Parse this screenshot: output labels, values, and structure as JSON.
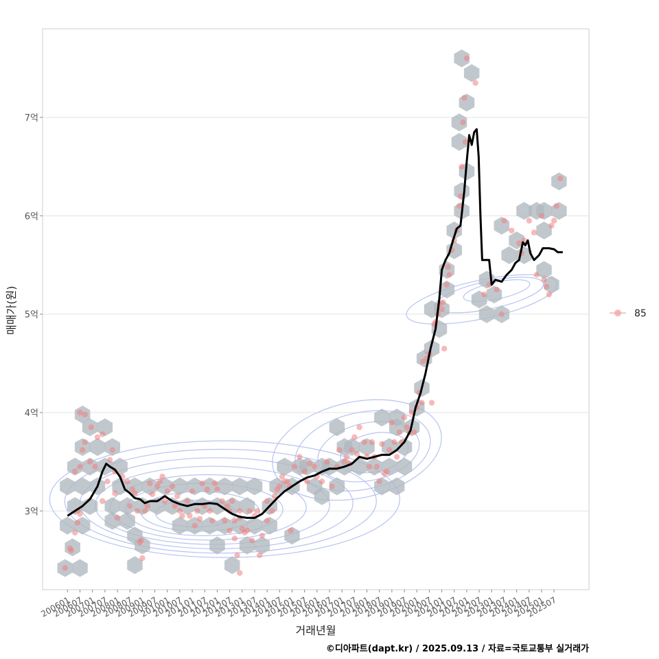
{
  "chart_data": {
    "type": "scatter",
    "xlabel": "거래년월",
    "ylabel": "매매가(원)",
    "x_ticks": [
      "200601",
      "200607",
      "200701",
      "200707",
      "200801",
      "200807",
      "200901",
      "200907",
      "201001",
      "201007",
      "201101",
      "201107",
      "201201",
      "201207",
      "201301",
      "201307",
      "201401",
      "201407",
      "201501",
      "201507",
      "201601",
      "201607",
      "201701",
      "201707",
      "201801",
      "201807",
      "201901",
      "201907",
      "202001",
      "202007",
      "202101",
      "202107",
      "202201",
      "202207",
      "202301",
      "202307",
      "202401",
      "202407",
      "202501",
      "202507"
    ],
    "y_ticks": [
      {
        "value": 3,
        "label": "3억"
      },
      {
        "value": 4,
        "label": "4억"
      },
      {
        "value": 5,
        "label": "5억"
      },
      {
        "value": 6,
        "label": "6억"
      },
      {
        "value": 7,
        "label": "7억"
      }
    ],
    "xlim": [
      2005.0,
      2026.9
    ],
    "ylim": [
      2.2,
      7.9
    ],
    "grid": true,
    "legend_position": "right",
    "legend": [
      {
        "label": "85",
        "color": "#f08080"
      }
    ],
    "trend_color": "#000000",
    "point_color": "#f08080",
    "hex_color": "#b0b8bf",
    "contour_color": "#aab8ee",
    "trend_line": [
      [
        2006.0,
        2.95
      ],
      [
        2006.3,
        3.0
      ],
      [
        2006.6,
        3.05
      ],
      [
        2006.9,
        3.12
      ],
      [
        2007.2,
        3.25
      ],
      [
        2007.4,
        3.4
      ],
      [
        2007.55,
        3.48
      ],
      [
        2007.7,
        3.45
      ],
      [
        2007.9,
        3.42
      ],
      [
        2008.1,
        3.35
      ],
      [
        2008.3,
        3.22
      ],
      [
        2008.5,
        3.18
      ],
      [
        2008.7,
        3.13
      ],
      [
        2008.9,
        3.12
      ],
      [
        2009.1,
        3.08
      ],
      [
        2009.3,
        3.1
      ],
      [
        2009.6,
        3.1
      ],
      [
        2009.9,
        3.15
      ],
      [
        2010.2,
        3.1
      ],
      [
        2010.5,
        3.07
      ],
      [
        2010.8,
        3.05
      ],
      [
        2011.1,
        3.07
      ],
      [
        2011.4,
        3.07
      ],
      [
        2011.7,
        3.08
      ],
      [
        2012.0,
        3.07
      ],
      [
        2012.3,
        3.02
      ],
      [
        2012.6,
        2.97
      ],
      [
        2012.9,
        2.94
      ],
      [
        2013.2,
        2.93
      ],
      [
        2013.5,
        2.93
      ],
      [
        2013.8,
        2.97
      ],
      [
        2014.1,
        3.05
      ],
      [
        2014.4,
        3.13
      ],
      [
        2014.7,
        3.2
      ],
      [
        2015.0,
        3.25
      ],
      [
        2015.3,
        3.3
      ],
      [
        2015.6,
        3.34
      ],
      [
        2015.9,
        3.36
      ],
      [
        2016.2,
        3.4
      ],
      [
        2016.5,
        3.43
      ],
      [
        2016.8,
        3.43
      ],
      [
        2017.1,
        3.45
      ],
      [
        2017.4,
        3.48
      ],
      [
        2017.7,
        3.55
      ],
      [
        2018.0,
        3.53
      ],
      [
        2018.3,
        3.55
      ],
      [
        2018.6,
        3.57
      ],
      [
        2018.9,
        3.57
      ],
      [
        2019.2,
        3.62
      ],
      [
        2019.5,
        3.7
      ],
      [
        2019.75,
        3.82
      ],
      [
        2019.95,
        4.05
      ],
      [
        2020.15,
        4.2
      ],
      [
        2020.35,
        4.4
      ],
      [
        2020.55,
        4.65
      ],
      [
        2020.75,
        4.85
      ],
      [
        2020.9,
        5.15
      ],
      [
        2021.0,
        5.45
      ],
      [
        2021.15,
        5.55
      ],
      [
        2021.3,
        5.62
      ],
      [
        2021.45,
        5.75
      ],
      [
        2021.6,
        5.87
      ],
      [
        2021.75,
        5.9
      ],
      [
        2021.9,
        6.25
      ],
      [
        2022.0,
        6.55
      ],
      [
        2022.1,
        6.82
      ],
      [
        2022.2,
        6.72
      ],
      [
        2022.3,
        6.85
      ],
      [
        2022.4,
        6.88
      ],
      [
        2022.48,
        6.6
      ],
      [
        2022.55,
        6.0
      ],
      [
        2022.62,
        5.55
      ],
      [
        2022.75,
        5.55
      ],
      [
        2022.9,
        5.55
      ],
      [
        2023.0,
        5.3
      ],
      [
        2023.15,
        5.35
      ],
      [
        2023.4,
        5.33
      ],
      [
        2023.6,
        5.4
      ],
      [
        2023.8,
        5.45
      ],
      [
        2023.95,
        5.52
      ],
      [
        2024.1,
        5.55
      ],
      [
        2024.25,
        5.73
      ],
      [
        2024.35,
        5.7
      ],
      [
        2024.45,
        5.75
      ],
      [
        2024.55,
        5.62
      ],
      [
        2024.7,
        5.55
      ],
      [
        2024.9,
        5.6
      ],
      [
        2025.05,
        5.67
      ],
      [
        2025.3,
        5.67
      ],
      [
        2025.5,
        5.66
      ],
      [
        2025.65,
        5.63
      ],
      [
        2025.85,
        5.63
      ]
    ],
    "hexbins": [
      [
        2005.9,
        2.42
      ],
      [
        2006.5,
        2.42
      ],
      [
        2006.2,
        2.63
      ],
      [
        2006.0,
        2.85
      ],
      [
        2006.6,
        2.85
      ],
      [
        2006.3,
        3.05
      ],
      [
        2006.9,
        3.05
      ],
      [
        2006.0,
        3.25
      ],
      [
        2006.6,
        3.25
      ],
      [
        2007.2,
        3.25
      ],
      [
        2006.3,
        3.45
      ],
      [
        2006.9,
        3.45
      ],
      [
        2007.5,
        3.45
      ],
      [
        2006.6,
        3.65
      ],
      [
        2007.2,
        3.65
      ],
      [
        2007.8,
        3.65
      ],
      [
        2006.9,
        3.85
      ],
      [
        2007.5,
        3.85
      ],
      [
        2006.6,
        3.98
      ],
      [
        2008.1,
        3.45
      ],
      [
        2008.1,
        3.25
      ],
      [
        2007.8,
        3.05
      ],
      [
        2007.8,
        2.9
      ],
      [
        2008.7,
        3.25
      ],
      [
        2009.0,
        3.05
      ],
      [
        2008.4,
        3.05
      ],
      [
        2008.4,
        2.9
      ],
      [
        2009.3,
        3.25
      ],
      [
        2009.6,
        3.05
      ],
      [
        2009.9,
        3.25
      ],
      [
        2010.2,
        3.05
      ],
      [
        2010.5,
        3.25
      ],
      [
        2010.8,
        3.05
      ],
      [
        2011.1,
        3.25
      ],
      [
        2011.4,
        3.05
      ],
      [
        2011.7,
        3.25
      ],
      [
        2012.0,
        3.05
      ],
      [
        2012.3,
        3.25
      ],
      [
        2012.6,
        3.05
      ],
      [
        2012.9,
        3.25
      ],
      [
        2013.2,
        3.05
      ],
      [
        2013.5,
        3.25
      ],
      [
        2010.5,
        2.85
      ],
      [
        2011.1,
        2.85
      ],
      [
        2011.7,
        2.85
      ],
      [
        2012.3,
        2.85
      ],
      [
        2012.9,
        2.85
      ],
      [
        2013.5,
        2.85
      ],
      [
        2014.1,
        2.85
      ],
      [
        2012.0,
        2.65
      ],
      [
        2013.2,
        2.65
      ],
      [
        2013.8,
        2.65
      ],
      [
        2012.6,
        2.45
      ],
      [
        2009.0,
        2.65
      ],
      [
        2008.7,
        2.45
      ],
      [
        2008.7,
        2.75
      ],
      [
        2014.1,
        3.05
      ],
      [
        2014.4,
        3.25
      ],
      [
        2014.7,
        3.45
      ],
      [
        2015.0,
        3.25
      ],
      [
        2015.3,
        3.45
      ],
      [
        2015.6,
        3.45
      ],
      [
        2015.9,
        3.25
      ],
      [
        2016.2,
        3.45
      ],
      [
        2016.5,
        3.45
      ],
      [
        2016.8,
        3.25
      ],
      [
        2017.1,
        3.45
      ],
      [
        2017.4,
        3.65
      ],
      [
        2017.7,
        3.45
      ],
      [
        2017.1,
        3.65
      ],
      [
        2016.8,
        3.85
      ],
      [
        2018.0,
        3.65
      ],
      [
        2018.3,
        3.45
      ],
      [
        2018.6,
        3.25
      ],
      [
        2018.9,
        3.45
      ],
      [
        2019.2,
        3.25
      ],
      [
        2018.9,
        3.65
      ],
      [
        2019.5,
        3.45
      ],
      [
        2019.2,
        3.85
      ],
      [
        2019.5,
        3.65
      ],
      [
        2018.6,
        3.95
      ],
      [
        2019.2,
        3.95
      ],
      [
        2015.0,
        2.75
      ],
      [
        2016.2,
        3.15
      ],
      [
        2020.0,
        4.05
      ],
      [
        2020.2,
        4.25
      ],
      [
        2019.8,
        3.85
      ],
      [
        2020.3,
        4.55
      ],
      [
        2020.6,
        4.65
      ],
      [
        2020.9,
        4.85
      ],
      [
        2020.6,
        5.05
      ],
      [
        2021.0,
        5.05
      ],
      [
        2021.2,
        5.25
      ],
      [
        2021.2,
        5.45
      ],
      [
        2021.5,
        5.65
      ],
      [
        2021.5,
        5.85
      ],
      [
        2021.8,
        6.05
      ],
      [
        2021.8,
        6.25
      ],
      [
        2022.0,
        6.45
      ],
      [
        2021.7,
        6.75
      ],
      [
        2021.7,
        6.95
      ],
      [
        2022.0,
        7.15
      ],
      [
        2021.8,
        7.6
      ],
      [
        2022.2,
        7.45
      ],
      [
        2022.5,
        5.15
      ],
      [
        2022.8,
        5.35
      ],
      [
        2022.8,
        5.0
      ],
      [
        2023.1,
        5.2
      ],
      [
        2023.4,
        5.0
      ],
      [
        2023.4,
        5.9
      ],
      [
        2023.7,
        5.6
      ],
      [
        2024.0,
        5.75
      ],
      [
        2024.3,
        5.6
      ],
      [
        2024.3,
        6.05
      ],
      [
        2024.8,
        6.05
      ],
      [
        2025.1,
        5.85
      ],
      [
        2025.1,
        6.05
      ],
      [
        2025.4,
        5.3
      ],
      [
        2025.1,
        5.45
      ],
      [
        2025.7,
        6.05
      ],
      [
        2025.7,
        6.35
      ]
    ],
    "points": [
      [
        2005.9,
        2.42
      ],
      [
        2006.1,
        2.62
      ],
      [
        2006.15,
        2.6
      ],
      [
        2006.3,
        2.78
      ],
      [
        2006.4,
        2.88
      ],
      [
        2006.4,
        3.0
      ],
      [
        2006.5,
        2.97
      ],
      [
        2006.3,
        3.4
      ],
      [
        2006.5,
        3.45
      ],
      [
        2006.6,
        3.62
      ],
      [
        2006.7,
        3.7
      ],
      [
        2006.5,
        4.0
      ],
      [
        2006.7,
        3.98
      ],
      [
        2006.9,
        3.5
      ],
      [
        2006.95,
        3.85
      ],
      [
        2007.1,
        3.45
      ],
      [
        2007.2,
        3.75
      ],
      [
        2007.4,
        3.1
      ],
      [
        2007.4,
        3.78
      ],
      [
        2007.6,
        3.3
      ],
      [
        2007.7,
        3.52
      ],
      [
        2007.8,
        3.62
      ],
      [
        2007.9,
        3.18
      ],
      [
        2007.9,
        3.4
      ],
      [
        2008.0,
        2.93
      ],
      [
        2008.2,
        3.35
      ],
      [
        2008.4,
        3.3
      ],
      [
        2008.5,
        3.05
      ],
      [
        2008.6,
        3.22
      ],
      [
        2008.7,
        3.18
      ],
      [
        2008.8,
        3.0
      ],
      [
        2008.9,
        2.68
      ],
      [
        2008.95,
        2.7
      ],
      [
        2009.0,
        2.52
      ],
      [
        2009.1,
        3.0
      ],
      [
        2009.2,
        3.05
      ],
      [
        2009.3,
        3.28
      ],
      [
        2009.4,
        3.17
      ],
      [
        2009.6,
        3.25
      ],
      [
        2009.7,
        3.3
      ],
      [
        2009.8,
        3.35
      ],
      [
        2009.9,
        3.1
      ],
      [
        2010.0,
        3.2
      ],
      [
        2010.2,
        3.25
      ],
      [
        2010.3,
        3.05
      ],
      [
        2010.4,
        3.15
      ],
      [
        2010.5,
        3.0
      ],
      [
        2010.6,
        2.95
      ],
      [
        2010.8,
        3.1
      ],
      [
        2010.9,
        2.95
      ],
      [
        2011.0,
        3.2
      ],
      [
        2011.1,
        2.85
      ],
      [
        2011.2,
        3.0
      ],
      [
        2011.3,
        2.92
      ],
      [
        2011.4,
        3.28
      ],
      [
        2011.5,
        3.05
      ],
      [
        2011.6,
        3.22
      ],
      [
        2011.7,
        3.0
      ],
      [
        2011.8,
        2.9
      ],
      [
        2011.9,
        3.28
      ],
      [
        2012.0,
        3.22
      ],
      [
        2012.2,
        3.1
      ],
      [
        2012.3,
        2.9
      ],
      [
        2012.4,
        3.05
      ],
      [
        2012.5,
        2.8
      ],
      [
        2012.5,
        3.0
      ],
      [
        2012.6,
        3.1
      ],
      [
        2012.7,
        2.72
      ],
      [
        2012.7,
        2.9
      ],
      [
        2012.8,
        2.55
      ],
      [
        2012.9,
        2.93
      ],
      [
        2012.9,
        3.0
      ],
      [
        2012.9,
        2.37
      ],
      [
        2013.0,
        2.82
      ],
      [
        2013.1,
        2.78
      ],
      [
        2013.2,
        2.8
      ],
      [
        2013.3,
        3.0
      ],
      [
        2013.4,
        2.7
      ],
      [
        2013.5,
        2.95
      ],
      [
        2013.6,
        3.0
      ],
      [
        2013.7,
        2.55
      ],
      [
        2013.8,
        2.75
      ],
      [
        2014.0,
        3.1
      ],
      [
        2014.0,
        2.9
      ],
      [
        2014.2,
        3.0
      ],
      [
        2014.3,
        3.15
      ],
      [
        2014.4,
        3.22
      ],
      [
        2014.5,
        3.25
      ],
      [
        2014.6,
        3.35
      ],
      [
        2014.7,
        3.3
      ],
      [
        2014.8,
        3.3
      ],
      [
        2014.9,
        3.25
      ],
      [
        2014.95,
        2.8
      ],
      [
        2015.1,
        3.45
      ],
      [
        2015.3,
        3.55
      ],
      [
        2015.5,
        3.4
      ],
      [
        2015.6,
        3.3
      ],
      [
        2015.7,
        3.48
      ],
      [
        2015.9,
        3.45
      ],
      [
        2016.0,
        3.35
      ],
      [
        2016.2,
        3.3
      ],
      [
        2016.4,
        3.5
      ],
      [
        2016.6,
        3.25
      ],
      [
        2016.8,
        3.45
      ],
      [
        2016.9,
        3.62
      ],
      [
        2017.1,
        3.5
      ],
      [
        2017.2,
        3.55
      ],
      [
        2017.3,
        3.48
      ],
      [
        2017.4,
        3.62
      ],
      [
        2017.5,
        3.75
      ],
      [
        2017.6,
        3.58
      ],
      [
        2017.7,
        3.85
      ],
      [
        2017.9,
        3.7
      ],
      [
        2018.0,
        3.55
      ],
      [
        2018.1,
        3.45
      ],
      [
        2018.2,
        3.7
      ],
      [
        2018.3,
        3.55
      ],
      [
        2018.4,
        3.45
      ],
      [
        2018.5,
        3.3
      ],
      [
        2018.6,
        3.68
      ],
      [
        2018.7,
        3.38
      ],
      [
        2018.8,
        3.4
      ],
      [
        2018.9,
        3.62
      ],
      [
        2019.0,
        3.9
      ],
      [
        2019.1,
        3.7
      ],
      [
        2019.2,
        3.55
      ],
      [
        2019.3,
        3.8
      ],
      [
        2019.4,
        3.7
      ],
      [
        2019.5,
        3.95
      ],
      [
        2019.6,
        3.85
      ],
      [
        2019.7,
        3.8
      ],
      [
        2019.8,
        4.0
      ],
      [
        2019.9,
        3.8
      ],
      [
        2020.0,
        4.05
      ],
      [
        2020.1,
        4.2
      ],
      [
        2020.2,
        4.1
      ],
      [
        2020.25,
        4.52
      ],
      [
        2020.4,
        4.55
      ],
      [
        2020.5,
        4.6
      ],
      [
        2020.6,
        4.1
      ],
      [
        2020.7,
        4.9
      ],
      [
        2020.75,
        4.92
      ],
      [
        2020.85,
        5.0
      ],
      [
        2020.9,
        5.1
      ],
      [
        2021.0,
        5.05
      ],
      [
        2021.05,
        5.12
      ],
      [
        2021.1,
        4.65
      ],
      [
        2021.2,
        5.3
      ],
      [
        2021.25,
        5.48
      ],
      [
        2021.3,
        5.4
      ],
      [
        2021.4,
        5.65
      ],
      [
        2021.5,
        5.75
      ],
      [
        2021.6,
        5.85
      ],
      [
        2021.7,
        6.1
      ],
      [
        2021.75,
        6.2
      ],
      [
        2021.8,
        6.5
      ],
      [
        2021.85,
        6.95
      ],
      [
        2021.9,
        7.2
      ],
      [
        2021.95,
        6.75
      ],
      [
        2022.0,
        7.6
      ],
      [
        2022.35,
        7.35
      ],
      [
        2022.7,
        5.2
      ],
      [
        2022.9,
        5.3
      ],
      [
        2023.2,
        5.25
      ],
      [
        2023.4,
        5.0
      ],
      [
        2023.5,
        5.95
      ],
      [
        2023.8,
        5.85
      ],
      [
        2024.1,
        5.72
      ],
      [
        2024.2,
        5.62
      ],
      [
        2024.3,
        5.75
      ],
      [
        2024.5,
        5.95
      ],
      [
        2024.7,
        5.83
      ],
      [
        2024.8,
        5.4
      ],
      [
        2025.0,
        6.0
      ],
      [
        2025.1,
        5.35
      ],
      [
        2025.2,
        5.28
      ],
      [
        2025.3,
        5.2
      ],
      [
        2025.4,
        5.9
      ],
      [
        2025.5,
        5.95
      ],
      [
        2025.6,
        6.1
      ],
      [
        2025.75,
        6.38
      ]
    ]
  },
  "caption": "©디아파트(dapt.kr) / 2025.09.13 / 자료=국토교통부 실거래가"
}
